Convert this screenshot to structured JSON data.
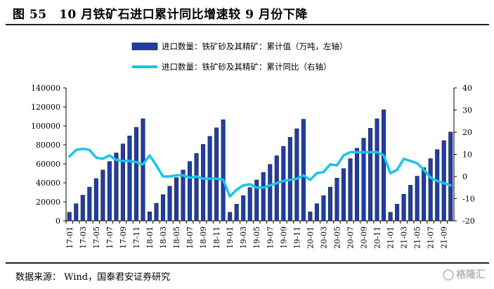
{
  "title": "图 55　10 月铁矿石进口累计同比增速较 9 月份下降",
  "source": "数据来源： Wind，国泰君安证券研究",
  "watermark": "格隆汇",
  "colors": {
    "bar": "#1f3ea6",
    "line": "#17c4ee"
  },
  "chart_data": {
    "type": "bar",
    "categories": [
      "17-01",
      "17-02",
      "17-03",
      "17-04",
      "17-05",
      "17-06",
      "17-07",
      "17-08",
      "17-09",
      "17-10",
      "17-11",
      "17-12",
      "18-01",
      "18-02",
      "18-03",
      "18-04",
      "18-05",
      "18-06",
      "18-07",
      "18-08",
      "18-09",
      "18-10",
      "18-11",
      "18-12",
      "19-01",
      "19-02",
      "19-03",
      "19-04",
      "19-05",
      "19-06",
      "19-07",
      "19-08",
      "19-09",
      "19-10",
      "19-11",
      "19-12",
      "20-01",
      "20-02",
      "20-03",
      "20-04",
      "20-05",
      "20-06",
      "20-07",
      "20-08",
      "20-09",
      "20-10",
      "20-11",
      "20-12",
      "21-01",
      "21-02",
      "21-03",
      "21-04",
      "21-05",
      "21-06",
      "21-07",
      "21-08",
      "21-09",
      "21-10"
    ],
    "tick_labels": [
      "17-01",
      "17-03",
      "17-05",
      "17-07",
      "17-09",
      "17-11",
      "18-01",
      "18-03",
      "18-05",
      "18-07",
      "18-09",
      "18-11",
      "19-01",
      "19-03",
      "19-05",
      "19-07",
      "19-09",
      "19-11",
      "20-01",
      "20-03",
      "20-05",
      "20-07",
      "20-09",
      "20-11",
      "21-01",
      "21-03",
      "21-05",
      "21-07",
      "21-09"
    ],
    "series": [
      {
        "name": "进口数量：铁矿砂及其精矿：累计值（万吨，左轴）",
        "type": "bar",
        "axis": "left",
        "values": [
          9000,
          18000,
          27000,
          35500,
          44500,
          53500,
          62500,
          71500,
          81000,
          89500,
          98500,
          107500,
          9500,
          18500,
          27500,
          36500,
          45500,
          53500,
          62500,
          71000,
          80500,
          89000,
          98000,
          106500,
          9000,
          17500,
          26500,
          35000,
          43000,
          51000,
          59500,
          68500,
          78500,
          88000,
          97000,
          107000,
          9500,
          18000,
          26500,
          35500,
          45000,
          55000,
          65500,
          76500,
          87000,
          97500,
          107500,
          117000,
          9000,
          17500,
          28000,
          37500,
          47000,
          56000,
          65500,
          75000,
          84500,
          93500
        ]
      },
      {
        "name": "进口数量：铁矿砂及其精矿：累计同比（右轴）",
        "type": "line",
        "axis": "right",
        "values": [
          9,
          12,
          12.5,
          12,
          8.5,
          8,
          9.5,
          7.5,
          7,
          7,
          6.5,
          5.5,
          9.5,
          5,
          0,
          0,
          0.5,
          0.5,
          -0.5,
          0,
          -1,
          -1,
          -1,
          -1.5,
          -9,
          -6,
          -4,
          -3.5,
          -5,
          -5,
          -4,
          -3,
          -2,
          -1.5,
          -1,
          0.5,
          -1.5,
          1.5,
          2,
          5.5,
          5,
          9.5,
          11,
          11,
          11,
          11,
          11,
          9.5,
          1.5,
          3,
          8,
          7,
          6,
          3,
          -0.5,
          -2,
          -3,
          -4
        ]
      }
    ],
    "ylim_left": [
      0,
      140000
    ],
    "yticks_left": [
      "0",
      "20000",
      "40000",
      "60000",
      "80000",
      "100000",
      "120000",
      "140000"
    ],
    "ylim_right": [
      -20,
      40
    ],
    "yticks_right": [
      "-20",
      "-10",
      "0",
      "10",
      "20",
      "30",
      "40"
    ],
    "legend": "top",
    "grid": false
  }
}
